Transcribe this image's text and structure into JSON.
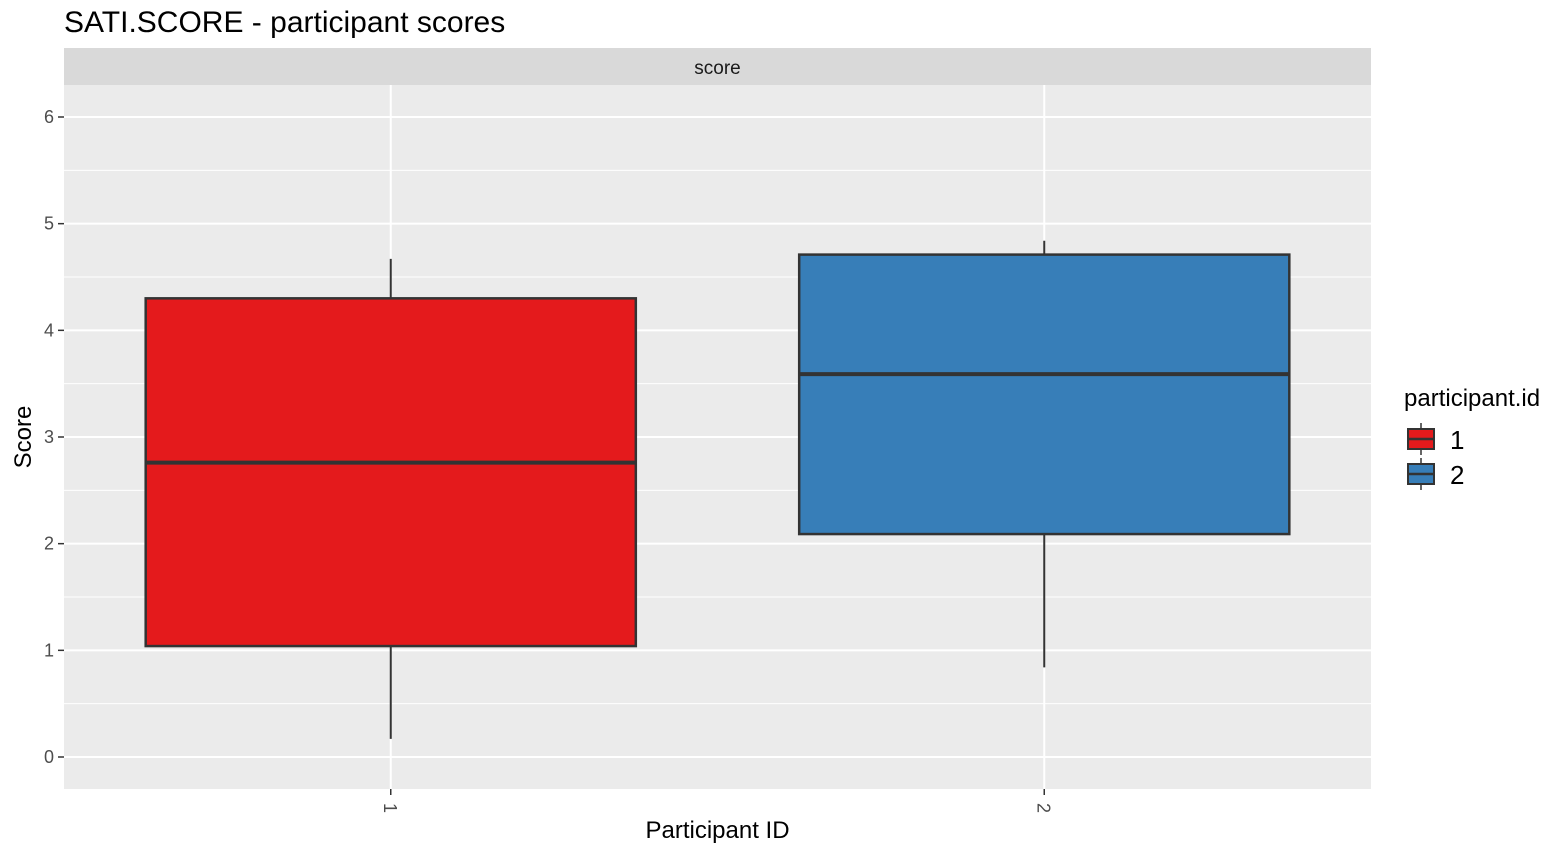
{
  "chart_data": {
    "type": "box",
    "title": "SATI.SCORE - participant scores",
    "facet_label": "score",
    "xlabel": "Participant ID",
    "ylabel": "Score",
    "categories": [
      "1",
      "2"
    ],
    "ylim": [
      -0.3,
      6.3
    ],
    "yticks": [
      0,
      1,
      2,
      3,
      4,
      5,
      6
    ],
    "grid": true,
    "legend": {
      "title": "participant.id",
      "position": "right",
      "entries": [
        "1",
        "2"
      ]
    },
    "boxes": [
      {
        "category": "1",
        "min": 0.17,
        "q1": 1.04,
        "median": 2.76,
        "q3": 4.3,
        "max": 4.67,
        "color": "#E41A1C"
      },
      {
        "category": "2",
        "min": 0.84,
        "q1": 2.09,
        "median": 3.59,
        "q3": 4.71,
        "max": 4.84,
        "color": "#377EB8"
      }
    ]
  }
}
